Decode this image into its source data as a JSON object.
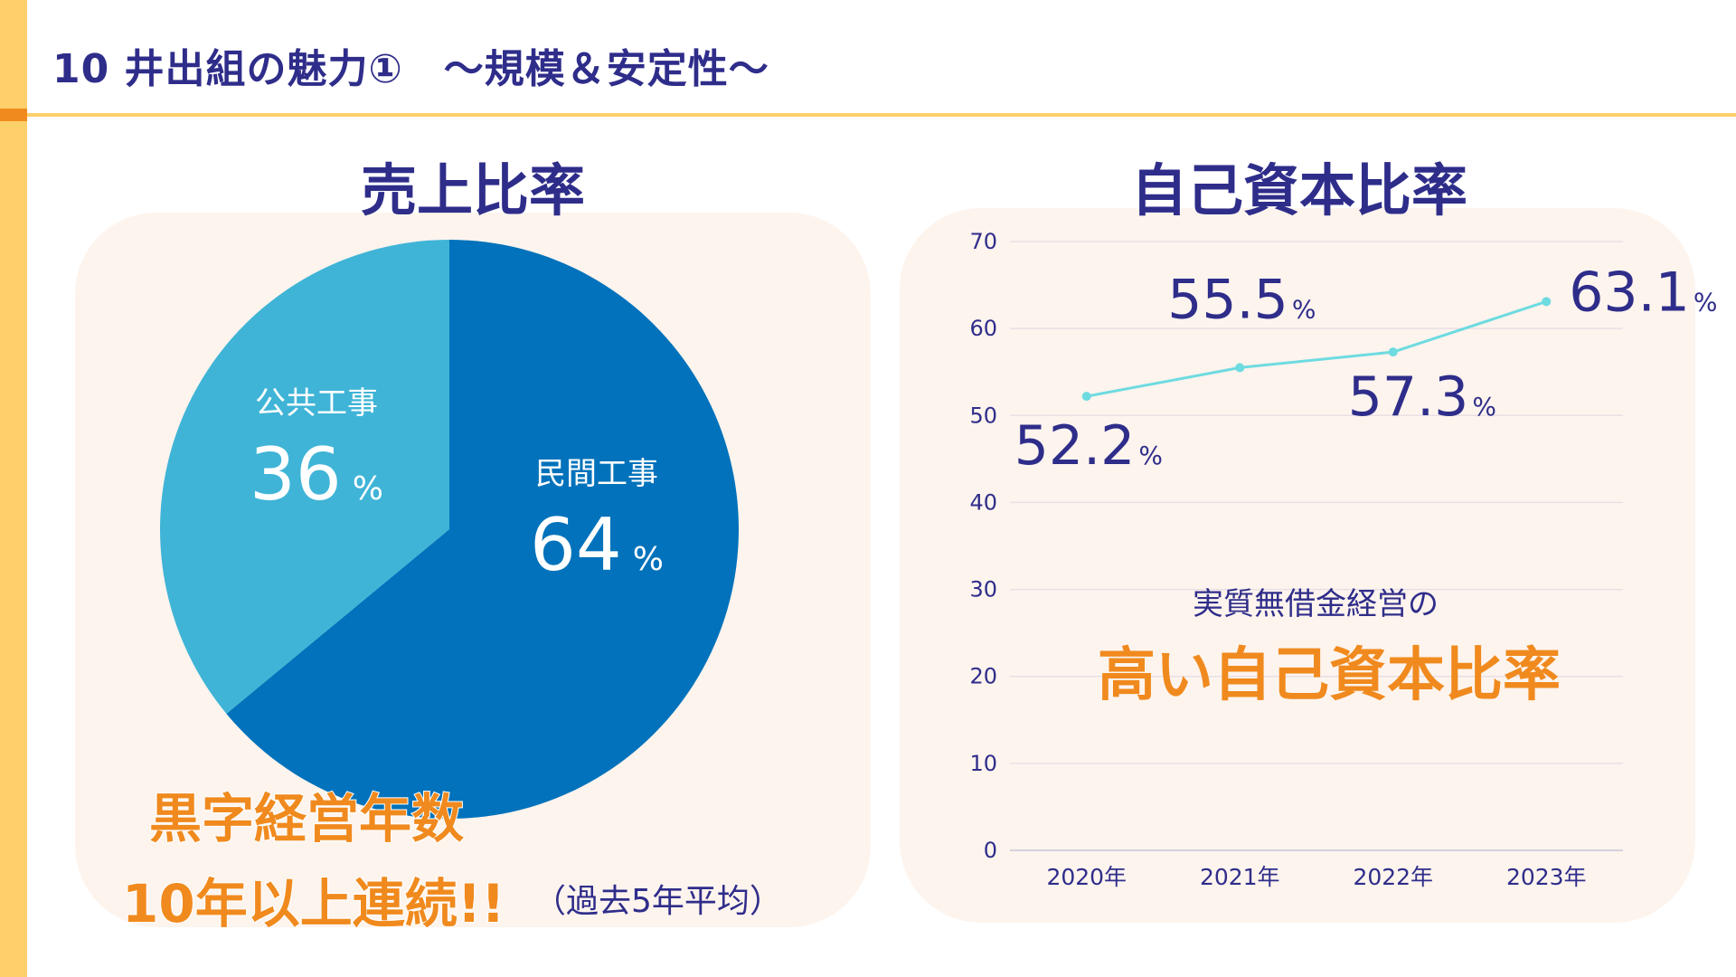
{
  "slide": {
    "title": "10 井出組の魅力①　～規模＆安定性～"
  },
  "colors": {
    "navy": "#2f2d8a",
    "orange": "#f08a1e",
    "yellow": "#fdd06a",
    "panel_bg": "#fdf4ee",
    "pie_private": "#0172bb",
    "pie_public": "#3fb4d7",
    "line": "#6ddbe0"
  },
  "left_panel": {
    "highlight_line1": "黒字経営年数",
    "highlight_line2": "10年以上連続!!",
    "note": "（過去5年平均）"
  },
  "right_panel": {
    "caption": "実質無借金経営の",
    "claim": "高い自己資本比率"
  },
  "chart_data": [
    {
      "type": "pie",
      "title": "売上比率",
      "slices": [
        {
          "label": "民間工事",
          "value": 64,
          "value_text": "64",
          "unit": "%",
          "color": "#0172bb"
        },
        {
          "label": "公共工事",
          "value": 36,
          "value_text": "36",
          "unit": "%",
          "color": "#3fb4d7"
        }
      ]
    },
    {
      "type": "line",
      "title": "自己資本比率",
      "categories": [
        "2020年",
        "2021年",
        "2022年",
        "2023年"
      ],
      "series": [
        {
          "values": [
            52.2,
            55.5,
            57.3,
            63.1
          ],
          "labels": [
            "52.2",
            "55.5",
            "57.3",
            "63.1"
          ],
          "unit": "%",
          "color": "#6ddbe0"
        }
      ],
      "ylim": [
        0,
        70
      ],
      "yticks": [
        0,
        10,
        20,
        30,
        40,
        50,
        60,
        70
      ],
      "grid": true,
      "legend": "none"
    }
  ]
}
